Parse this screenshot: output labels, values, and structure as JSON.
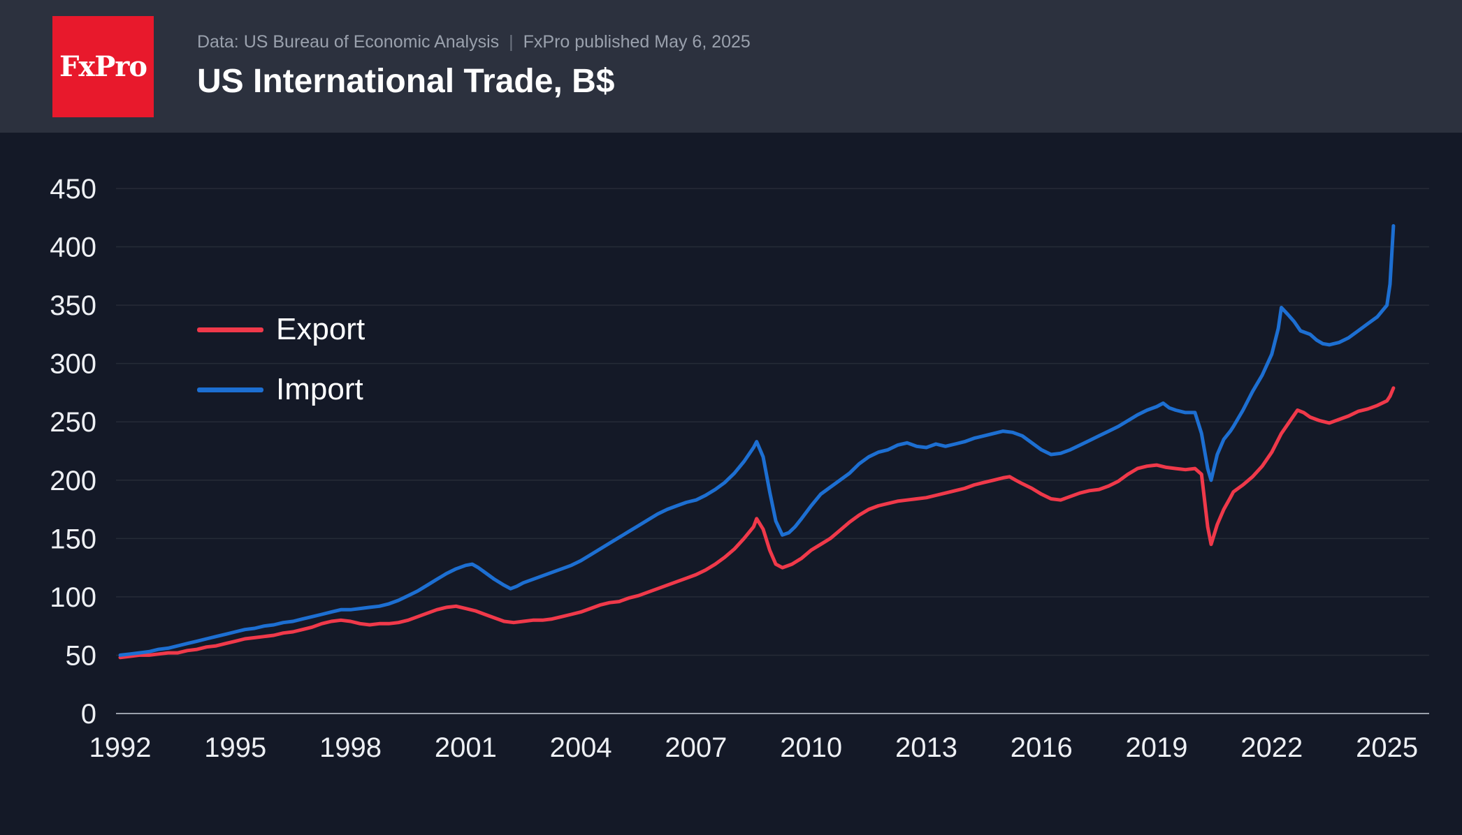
{
  "header": {
    "logo_text": "FxPro",
    "source_line": "Data: US Bureau of Economic Analysis",
    "separator": "|",
    "published_line": "FxPro published May 6, 2025",
    "title": "US International Trade, B$"
  },
  "colors": {
    "header_bg": "#2c313e",
    "page_bg": "#141927",
    "logo_bg": "#e8192c",
    "export_line": "#f0394a",
    "import_line": "#1d6fd2",
    "grid": "rgba(255,255,255,0.08)",
    "axis_line": "#9aa0ac",
    "axis_text": "#eef0f4",
    "meta_text": "#9aa1ad",
    "title_text": "#ffffff"
  },
  "chart_data": {
    "type": "line",
    "title": "US International Trade, B$",
    "xlabel": "",
    "ylabel": "",
    "units": "billion USD per month",
    "xlim": [
      1992,
      2026.1
    ],
    "ylim": [
      0,
      450
    ],
    "yticks": [
      0,
      50,
      100,
      150,
      200,
      250,
      300,
      350,
      400,
      450
    ],
    "xticks": [
      1992,
      1995,
      1998,
      2001,
      2004,
      2007,
      2010,
      2013,
      2016,
      2019,
      2022,
      2025
    ],
    "grid": true,
    "legend_position": "upper-left-inside",
    "series": [
      {
        "name": "Export",
        "color": "#f0394a",
        "points": [
          [
            1992,
            48
          ],
          [
            1992.25,
            49
          ],
          [
            1992.5,
            50
          ],
          [
            1992.75,
            50
          ],
          [
            1993,
            51
          ],
          [
            1993.25,
            52
          ],
          [
            1993.5,
            52
          ],
          [
            1993.75,
            54
          ],
          [
            1994,
            55
          ],
          [
            1994.25,
            57
          ],
          [
            1994.5,
            58
          ],
          [
            1994.75,
            60
          ],
          [
            1995,
            62
          ],
          [
            1995.25,
            64
          ],
          [
            1995.5,
            65
          ],
          [
            1995.75,
            66
          ],
          [
            1996,
            67
          ],
          [
            1996.25,
            69
          ],
          [
            1996.5,
            70
          ],
          [
            1996.75,
            72
          ],
          [
            1997,
            74
          ],
          [
            1997.25,
            77
          ],
          [
            1997.5,
            79
          ],
          [
            1997.75,
            80
          ],
          [
            1998,
            79
          ],
          [
            1998.25,
            77
          ],
          [
            1998.5,
            76
          ],
          [
            1998.75,
            77
          ],
          [
            1999,
            77
          ],
          [
            1999.25,
            78
          ],
          [
            1999.5,
            80
          ],
          [
            1999.75,
            83
          ],
          [
            2000,
            86
          ],
          [
            2000.25,
            89
          ],
          [
            2000.5,
            91
          ],
          [
            2000.75,
            92
          ],
          [
            2001,
            90
          ],
          [
            2001.25,
            88
          ],
          [
            2001.5,
            85
          ],
          [
            2001.75,
            82
          ],
          [
            2002,
            79
          ],
          [
            2002.25,
            78
          ],
          [
            2002.5,
            79
          ],
          [
            2002.75,
            80
          ],
          [
            2003,
            80
          ],
          [
            2003.25,
            81
          ],
          [
            2003.5,
            83
          ],
          [
            2003.75,
            85
          ],
          [
            2004,
            87
          ],
          [
            2004.25,
            90
          ],
          [
            2004.5,
            93
          ],
          [
            2004.75,
            95
          ],
          [
            2005,
            96
          ],
          [
            2005.25,
            99
          ],
          [
            2005.5,
            101
          ],
          [
            2005.75,
            104
          ],
          [
            2006,
            107
          ],
          [
            2006.25,
            110
          ],
          [
            2006.5,
            113
          ],
          [
            2006.75,
            116
          ],
          [
            2007,
            119
          ],
          [
            2007.25,
            123
          ],
          [
            2007.5,
            128
          ],
          [
            2007.75,
            134
          ],
          [
            2008,
            141
          ],
          [
            2008.25,
            150
          ],
          [
            2008.5,
            160
          ],
          [
            2008.58,
            167
          ],
          [
            2008.75,
            158
          ],
          [
            2008.92,
            140
          ],
          [
            2009.08,
            128
          ],
          [
            2009.25,
            125
          ],
          [
            2009.5,
            128
          ],
          [
            2009.75,
            133
          ],
          [
            2010,
            140
          ],
          [
            2010.25,
            145
          ],
          [
            2010.5,
            150
          ],
          [
            2010.75,
            157
          ],
          [
            2011,
            164
          ],
          [
            2011.25,
            170
          ],
          [
            2011.5,
            175
          ],
          [
            2011.75,
            178
          ],
          [
            2012,
            180
          ],
          [
            2012.25,
            182
          ],
          [
            2012.5,
            183
          ],
          [
            2012.75,
            184
          ],
          [
            2013,
            185
          ],
          [
            2013.25,
            187
          ],
          [
            2013.5,
            189
          ],
          [
            2013.75,
            191
          ],
          [
            2014,
            193
          ],
          [
            2014.25,
            196
          ],
          [
            2014.5,
            198
          ],
          [
            2014.75,
            200
          ],
          [
            2015,
            202
          ],
          [
            2015.17,
            203
          ],
          [
            2015.33,
            200
          ],
          [
            2015.5,
            197
          ],
          [
            2015.75,
            193
          ],
          [
            2016,
            188
          ],
          [
            2016.25,
            184
          ],
          [
            2016.5,
            183
          ],
          [
            2016.75,
            186
          ],
          [
            2017,
            189
          ],
          [
            2017.25,
            191
          ],
          [
            2017.5,
            192
          ],
          [
            2017.75,
            195
          ],
          [
            2018,
            199
          ],
          [
            2018.25,
            205
          ],
          [
            2018.5,
            210
          ],
          [
            2018.75,
            212
          ],
          [
            2019,
            213
          ],
          [
            2019.25,
            211
          ],
          [
            2019.5,
            210
          ],
          [
            2019.75,
            209
          ],
          [
            2020,
            210
          ],
          [
            2020.17,
            205
          ],
          [
            2020.33,
            160
          ],
          [
            2020.42,
            145
          ],
          [
            2020.58,
            162
          ],
          [
            2020.75,
            175
          ],
          [
            2020.92,
            185
          ],
          [
            2021,
            190
          ],
          [
            2021.25,
            196
          ],
          [
            2021.5,
            203
          ],
          [
            2021.75,
            212
          ],
          [
            2022,
            224
          ],
          [
            2022.25,
            240
          ],
          [
            2022.5,
            252
          ],
          [
            2022.67,
            260
          ],
          [
            2022.83,
            258
          ],
          [
            2023,
            254
          ],
          [
            2023.25,
            251
          ],
          [
            2023.5,
            249
          ],
          [
            2023.75,
            252
          ],
          [
            2024,
            255
          ],
          [
            2024.25,
            259
          ],
          [
            2024.5,
            261
          ],
          [
            2024.75,
            264
          ],
          [
            2025,
            268
          ],
          [
            2025.08,
            272
          ],
          [
            2025.17,
            279
          ]
        ]
      },
      {
        "name": "Import",
        "color": "#1d6fd2",
        "points": [
          [
            1992,
            50
          ],
          [
            1992.25,
            51
          ],
          [
            1992.5,
            52
          ],
          [
            1992.75,
            53
          ],
          [
            1993,
            55
          ],
          [
            1993.25,
            56
          ],
          [
            1993.5,
            58
          ],
          [
            1993.75,
            60
          ],
          [
            1994,
            62
          ],
          [
            1994.25,
            64
          ],
          [
            1994.5,
            66
          ],
          [
            1994.75,
            68
          ],
          [
            1995,
            70
          ],
          [
            1995.25,
            72
          ],
          [
            1995.5,
            73
          ],
          [
            1995.75,
            75
          ],
          [
            1996,
            76
          ],
          [
            1996.25,
            78
          ],
          [
            1996.5,
            79
          ],
          [
            1996.75,
            81
          ],
          [
            1997,
            83
          ],
          [
            1997.25,
            85
          ],
          [
            1997.5,
            87
          ],
          [
            1997.75,
            89
          ],
          [
            1998,
            89
          ],
          [
            1998.25,
            90
          ],
          [
            1998.5,
            91
          ],
          [
            1998.75,
            92
          ],
          [
            1999,
            94
          ],
          [
            1999.25,
            97
          ],
          [
            1999.5,
            101
          ],
          [
            1999.75,
            105
          ],
          [
            2000,
            110
          ],
          [
            2000.25,
            115
          ],
          [
            2000.5,
            120
          ],
          [
            2000.75,
            124
          ],
          [
            2001,
            127
          ],
          [
            2001.17,
            128
          ],
          [
            2001.33,
            125
          ],
          [
            2001.5,
            121
          ],
          [
            2001.75,
            115
          ],
          [
            2002,
            110
          ],
          [
            2002.17,
            107
          ],
          [
            2002.33,
            109
          ],
          [
            2002.5,
            112
          ],
          [
            2002.75,
            115
          ],
          [
            2003,
            118
          ],
          [
            2003.25,
            121
          ],
          [
            2003.5,
            124
          ],
          [
            2003.75,
            127
          ],
          [
            2004,
            131
          ],
          [
            2004.25,
            136
          ],
          [
            2004.5,
            141
          ],
          [
            2004.75,
            146
          ],
          [
            2005,
            151
          ],
          [
            2005.25,
            156
          ],
          [
            2005.5,
            161
          ],
          [
            2005.75,
            166
          ],
          [
            2006,
            171
          ],
          [
            2006.25,
            175
          ],
          [
            2006.5,
            178
          ],
          [
            2006.75,
            181
          ],
          [
            2007,
            183
          ],
          [
            2007.25,
            187
          ],
          [
            2007.5,
            192
          ],
          [
            2007.75,
            198
          ],
          [
            2008,
            206
          ],
          [
            2008.25,
            216
          ],
          [
            2008.5,
            228
          ],
          [
            2008.58,
            233
          ],
          [
            2008.75,
            220
          ],
          [
            2008.92,
            190
          ],
          [
            2009.08,
            165
          ],
          [
            2009.25,
            153
          ],
          [
            2009.42,
            155
          ],
          [
            2009.58,
            160
          ],
          [
            2009.75,
            167
          ],
          [
            2010,
            178
          ],
          [
            2010.25,
            188
          ],
          [
            2010.5,
            194
          ],
          [
            2010.75,
            200
          ],
          [
            2011,
            206
          ],
          [
            2011.25,
            214
          ],
          [
            2011.5,
            220
          ],
          [
            2011.75,
            224
          ],
          [
            2012,
            226
          ],
          [
            2012.25,
            230
          ],
          [
            2012.5,
            232
          ],
          [
            2012.75,
            229
          ],
          [
            2013,
            228
          ],
          [
            2013.25,
            231
          ],
          [
            2013.5,
            229
          ],
          [
            2013.75,
            231
          ],
          [
            2014,
            233
          ],
          [
            2014.25,
            236
          ],
          [
            2014.5,
            238
          ],
          [
            2014.75,
            240
          ],
          [
            2015,
            242
          ],
          [
            2015.25,
            241
          ],
          [
            2015.5,
            238
          ],
          [
            2015.75,
            232
          ],
          [
            2016,
            226
          ],
          [
            2016.25,
            222
          ],
          [
            2016.5,
            223
          ],
          [
            2016.75,
            226
          ],
          [
            2017,
            230
          ],
          [
            2017.25,
            234
          ],
          [
            2017.5,
            238
          ],
          [
            2017.75,
            242
          ],
          [
            2018,
            246
          ],
          [
            2018.25,
            251
          ],
          [
            2018.5,
            256
          ],
          [
            2018.75,
            260
          ],
          [
            2019,
            263
          ],
          [
            2019.17,
            266
          ],
          [
            2019.33,
            262
          ],
          [
            2019.5,
            260
          ],
          [
            2019.75,
            258
          ],
          [
            2020,
            258
          ],
          [
            2020.17,
            240
          ],
          [
            2020.33,
            210
          ],
          [
            2020.42,
            200
          ],
          [
            2020.58,
            222
          ],
          [
            2020.75,
            235
          ],
          [
            2020.92,
            242
          ],
          [
            2021,
            246
          ],
          [
            2021.25,
            260
          ],
          [
            2021.5,
            276
          ],
          [
            2021.75,
            290
          ],
          [
            2022,
            308
          ],
          [
            2022.17,
            330
          ],
          [
            2022.25,
            348
          ],
          [
            2022.42,
            342
          ],
          [
            2022.58,
            336
          ],
          [
            2022.75,
            328
          ],
          [
            2023,
            325
          ],
          [
            2023.17,
            320
          ],
          [
            2023.33,
            317
          ],
          [
            2023.5,
            316
          ],
          [
            2023.75,
            318
          ],
          [
            2024,
            322
          ],
          [
            2024.25,
            328
          ],
          [
            2024.5,
            334
          ],
          [
            2024.75,
            340
          ],
          [
            2025,
            350
          ],
          [
            2025.08,
            368
          ],
          [
            2025.17,
            418
          ]
        ]
      }
    ]
  }
}
